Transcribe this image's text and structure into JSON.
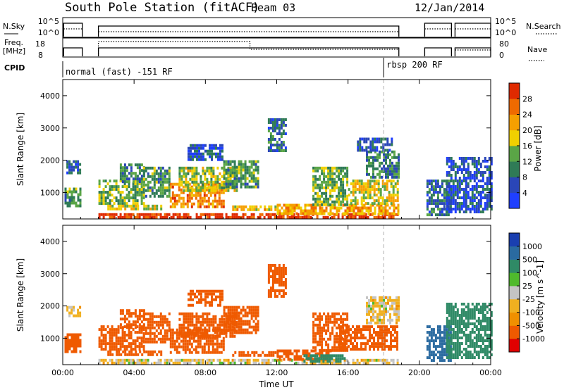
{
  "header": {
    "title": "South Pole Station (fitACF)",
    "beam": "Beam 03",
    "date": "12/Jan/2014"
  },
  "top_panels": {
    "nsky_label": "N.Sky",
    "nsky_ticks": [
      "10^5",
      "10^0"
    ],
    "nsearch_label": "N.Search",
    "nsearch_ticks": [
      "10^5",
      "10^0"
    ],
    "freq_label_1": "Freq.",
    "freq_label_2": "[MHz]",
    "freq_ticks": [
      "18",
      "8"
    ],
    "nave_label": "Nave",
    "nave_ticks": [
      "80",
      "0"
    ],
    "cpid_label": "CPID",
    "cpid_segments": [
      {
        "start": 0.0,
        "end": 18.0,
        "text": "normal (fast) -151 RF"
      },
      {
        "start": 18.0,
        "end": 24.0,
        "text": "rbsp 200 RF"
      }
    ]
  },
  "colors": {
    "power": [
      "#1f3fff",
      "#2a46b8",
      "#2f7b56",
      "#5aa546",
      "#f0d000",
      "#f59f00",
      "#ef6a00",
      "#e02a00"
    ],
    "velocity": [
      "#e00000",
      "#ef5a00",
      "#f09000",
      "#f0b020",
      "#c4c4c4",
      "#4fba2c",
      "#2f8a66",
      "#2a6aa0",
      "#1a3fb0"
    ]
  },
  "chart_data": [
    {
      "type": "heatmap",
      "name": "power",
      "ylabel": "Slant Range [km]",
      "colorbar_label": "Power [dB]",
      "colorbar_ticks": [
        "28",
        "24",
        "20",
        "16",
        "12",
        "8",
        "4"
      ],
      "colorbar_range": [
        0,
        32
      ],
      "xlim": [
        0,
        24
      ],
      "ylim": [
        180,
        4500
      ],
      "yticks": [
        "1000",
        "2000",
        "3000",
        "4000"
      ],
      "regions": [
        {
          "t0": 2.0,
          "t1": 18.8,
          "r0": 200,
          "r1": 360,
          "v": 30
        },
        {
          "t0": 0.1,
          "t1": 1.0,
          "r0": 600,
          "r1": 1150,
          "v": 12
        },
        {
          "t0": 0.2,
          "t1": 1.0,
          "r0": 1600,
          "r1": 2000,
          "v": 6
        },
        {
          "t0": 2.0,
          "t1": 4.5,
          "r0": 700,
          "r1": 1400,
          "v": 14
        },
        {
          "t0": 2.5,
          "t1": 5.5,
          "r0": 480,
          "r1": 620,
          "v": 18
        },
        {
          "t0": 3.2,
          "t1": 4.6,
          "r0": 1300,
          "r1": 1900,
          "v": 10
        },
        {
          "t0": 4.5,
          "t1": 6.0,
          "r0": 900,
          "r1": 1800,
          "v": 12
        },
        {
          "t0": 6.0,
          "t1": 9.0,
          "r0": 550,
          "r1": 1300,
          "v": 24
        },
        {
          "t0": 6.5,
          "t1": 9.8,
          "r0": 1100,
          "r1": 1800,
          "v": 16
        },
        {
          "t0": 9.0,
          "t1": 11.0,
          "r0": 1200,
          "r1": 2000,
          "v": 12
        },
        {
          "t0": 7.0,
          "t1": 9.0,
          "r0": 2000,
          "r1": 2500,
          "v": 6
        },
        {
          "t0": 9.5,
          "t1": 12.0,
          "r0": 450,
          "r1": 600,
          "v": 20
        },
        {
          "t0": 12.0,
          "t1": 18.8,
          "r0": 380,
          "r1": 650,
          "v": 22
        },
        {
          "t0": 11.5,
          "t1": 12.5,
          "r0": 2300,
          "r1": 3300,
          "v": 8
        },
        {
          "t0": 14.0,
          "t1": 16.0,
          "r0": 650,
          "r1": 1800,
          "v": 14
        },
        {
          "t0": 16.0,
          "t1": 18.8,
          "r0": 650,
          "r1": 1400,
          "v": 18
        },
        {
          "t0": 17.0,
          "t1": 18.8,
          "r0": 1500,
          "r1": 2300,
          "v": 10
        },
        {
          "t0": 16.5,
          "t1": 18.5,
          "r0": 2300,
          "r1": 2700,
          "v": 6
        },
        {
          "t0": 20.4,
          "t1": 21.8,
          "r0": 350,
          "r1": 1400,
          "v": 8
        },
        {
          "t0": 21.5,
          "t1": 24.0,
          "r0": 400,
          "r1": 2100,
          "v": 6
        }
      ]
    },
    {
      "type": "heatmap",
      "name": "velocity",
      "ylabel": "Slant Range [km]",
      "colorbar_label": "Velocity [m s^-1]",
      "colorbar_ticks": [
        "1000",
        "500",
        "100",
        "25",
        "-25",
        "-100",
        "-500",
        "-1000"
      ],
      "xlabel": "Time UT",
      "xlim": [
        0,
        24
      ],
      "ylim": [
        180,
        4500
      ],
      "xticks": [
        "00:00",
        "04:00",
        "08:00",
        "12:00",
        "16:00",
        "20:00",
        "00:00"
      ],
      "yticks": [
        "1000",
        "2000",
        "3000",
        "4000"
      ],
      "regions": [
        {
          "t0": 2.0,
          "t1": 18.8,
          "r0": 200,
          "r1": 360,
          "v": 0
        },
        {
          "t0": 0.1,
          "t1": 1.0,
          "r0": 600,
          "r1": 1150,
          "v": -300
        },
        {
          "t0": 0.2,
          "t1": 1.0,
          "r0": 1700,
          "r1": 2000,
          "v": 0
        },
        {
          "t0": 2.0,
          "t1": 4.5,
          "r0": 700,
          "r1": 1400,
          "v": -300
        },
        {
          "t0": 2.5,
          "t1": 5.5,
          "r0": 480,
          "r1": 620,
          "v": -300
        },
        {
          "t0": 3.2,
          "t1": 4.6,
          "r0": 1300,
          "r1": 1900,
          "v": -300
        },
        {
          "t0": 4.5,
          "t1": 6.0,
          "r0": 900,
          "r1": 1800,
          "v": -300
        },
        {
          "t0": 6.0,
          "t1": 9.0,
          "r0": 550,
          "r1": 1300,
          "v": -300
        },
        {
          "t0": 6.5,
          "t1": 9.8,
          "r0": 1100,
          "r1": 1800,
          "v": -200
        },
        {
          "t0": 9.0,
          "t1": 11.0,
          "r0": 1200,
          "r1": 2000,
          "v": -300
        },
        {
          "t0": 7.0,
          "t1": 9.0,
          "r0": 2000,
          "r1": 2500,
          "v": -300
        },
        {
          "t0": 9.5,
          "t1": 12.0,
          "r0": 450,
          "r1": 600,
          "v": -300
        },
        {
          "t0": 12.0,
          "t1": 15.0,
          "r0": 380,
          "r1": 650,
          "v": -300
        },
        {
          "t0": 13.5,
          "t1": 15.8,
          "r0": 250,
          "r1": 500,
          "v": 150
        },
        {
          "t0": 11.5,
          "t1": 12.5,
          "r0": 2300,
          "r1": 3300,
          "v": -300
        },
        {
          "t0": 14.0,
          "t1": 16.0,
          "r0": 650,
          "r1": 1800,
          "v": -200
        },
        {
          "t0": 15.5,
          "t1": 18.8,
          "r0": 650,
          "r1": 1400,
          "v": -200
        },
        {
          "t0": 17.0,
          "t1": 18.8,
          "r0": 1500,
          "r1": 2300,
          "v": 0
        },
        {
          "t0": 20.4,
          "t1": 21.8,
          "r0": 350,
          "r1": 1400,
          "v": 700
        },
        {
          "t0": 21.5,
          "t1": 24.0,
          "r0": 400,
          "r1": 2100,
          "v": 200
        }
      ]
    }
  ]
}
